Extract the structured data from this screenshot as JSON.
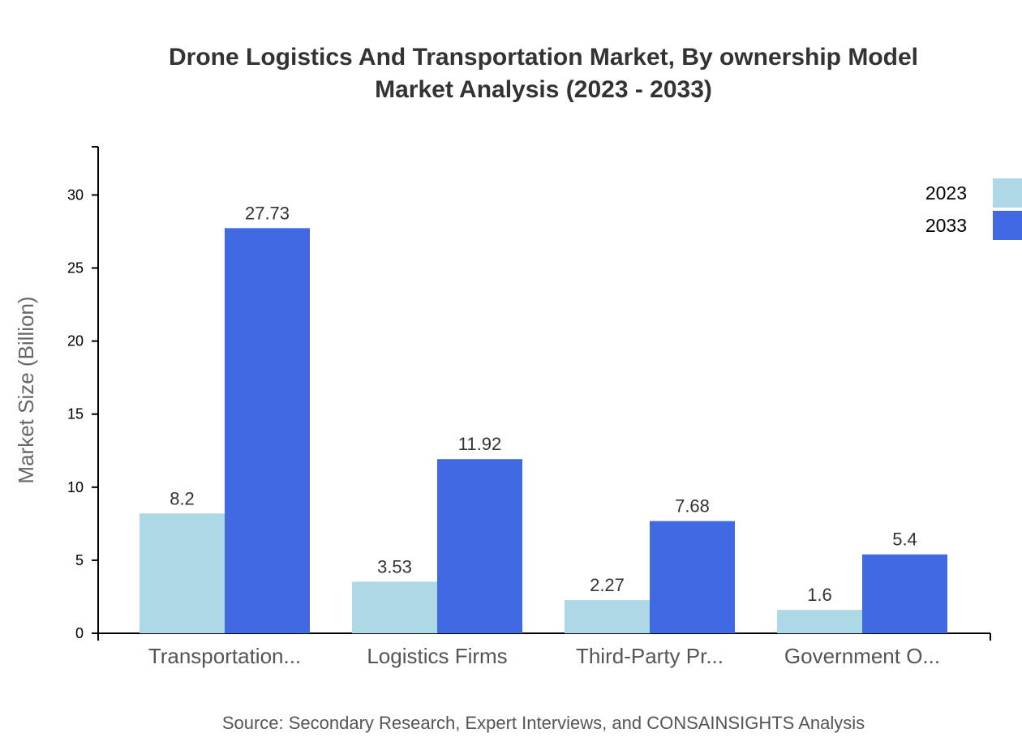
{
  "chart_data": {
    "type": "bar",
    "title_line1": "Drone Logistics And Transportation Market, By ownership Model",
    "title_line2": "Market Analysis (2023 - 2033)",
    "ylabel": "Market Size (Billion)",
    "xlabel": "",
    "ylim": [
      0,
      33.3
    ],
    "yticks": [
      0,
      5,
      10,
      15,
      20,
      25,
      30
    ],
    "categories": [
      "Transportation...",
      "Logistics Firms",
      "Third-Party Pr...",
      "Government O..."
    ],
    "series": [
      {
        "name": "2023",
        "color": "#add8e6",
        "values": [
          8.2,
          3.53,
          2.27,
          1.6
        ]
      },
      {
        "name": "2033",
        "color": "#4169e1",
        "values": [
          27.73,
          11.92,
          7.68,
          5.4
        ]
      }
    ],
    "legend_position": "top-right",
    "grid": false,
    "source": "Source: Secondary Research, Expert Interviews, and CONSAINSIGHTS Analysis"
  }
}
